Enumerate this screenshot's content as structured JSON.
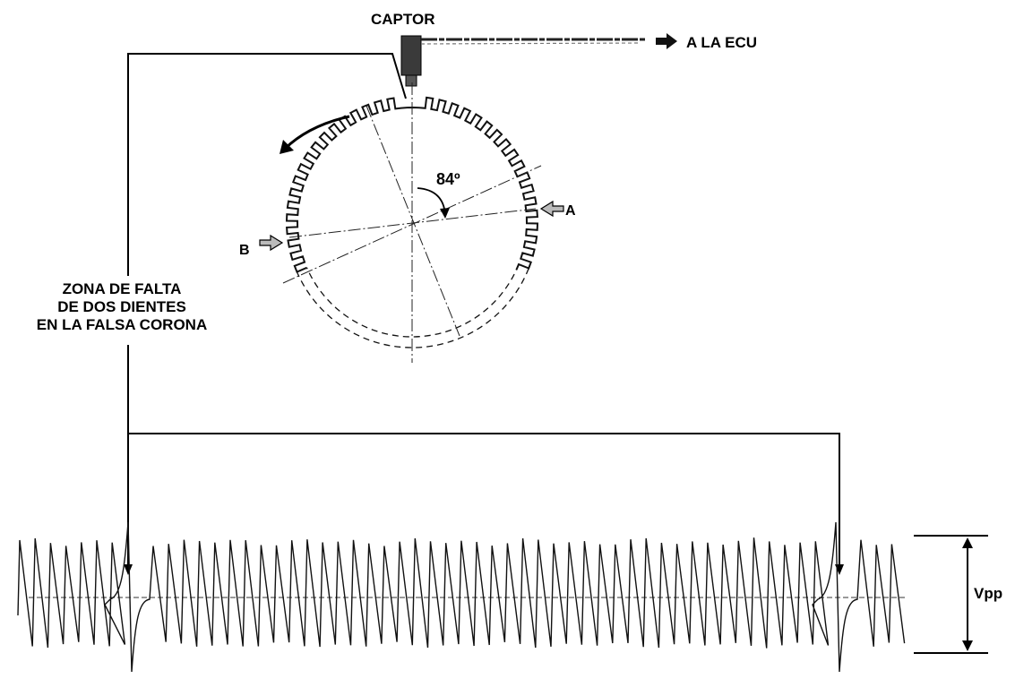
{
  "labels": {
    "sensor": "CAPTOR",
    "to_ecu": "A LA ECU",
    "angle": "84º",
    "point_a": "A",
    "point_b": "B",
    "zone_line1": "ZONA DE FALTA",
    "zone_line2": "DE DOS DIENTES",
    "zone_line3": "EN LA FALSA CORONA",
    "vpp": "Vpp"
  },
  "wheel": {
    "teeth_total": 60,
    "missing_teeth": 2,
    "rotation": "counterclockwise",
    "partial_visible": true
  },
  "signal": {
    "missing_tooth_gaps": 2
  },
  "colors": {
    "ink": "#000000",
    "background": "#ffffff"
  }
}
